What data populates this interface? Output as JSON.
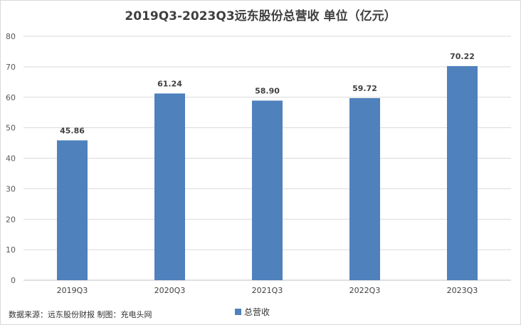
{
  "chart_data": {
    "type": "bar",
    "title": "2019Q3-2023Q3远东股份总营收 单位（亿元）",
    "categories": [
      "2019Q3",
      "2020Q3",
      "2021Q3",
      "2022Q3",
      "2023Q3"
    ],
    "series": [
      {
        "name": "总营收",
        "values": [
          45.86,
          61.24,
          58.9,
          59.72,
          70.22
        ],
        "color": "#4f81bd"
      }
    ],
    "data_labels": [
      "45.86",
      "61.24",
      "58.90",
      "59.72",
      "70.22"
    ],
    "ylim": [
      0,
      80
    ],
    "yticks": [
      0,
      10,
      20,
      30,
      40,
      50,
      60,
      70,
      80
    ],
    "grid": true,
    "legend_position": "bottom"
  },
  "footer": {
    "source": "数据来源：远东股份财报 制图：充电头网"
  }
}
